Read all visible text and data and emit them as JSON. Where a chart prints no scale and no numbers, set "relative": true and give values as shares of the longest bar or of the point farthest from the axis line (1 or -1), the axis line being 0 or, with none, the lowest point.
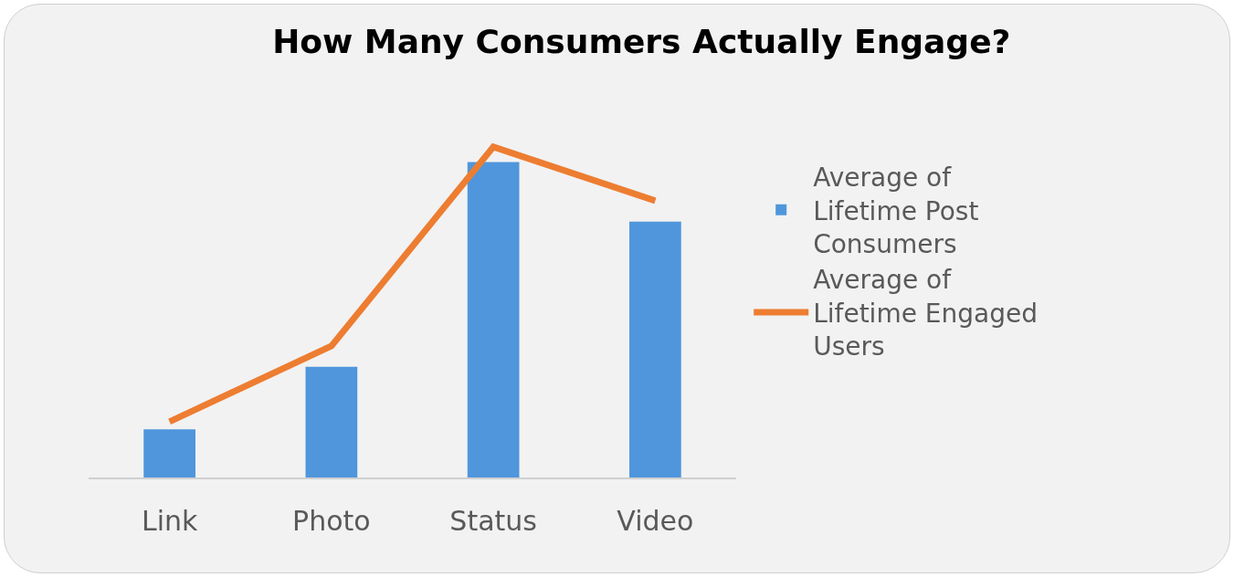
{
  "chart_data": {
    "type": "bar",
    "title": "How Many Consumers Actually Engage?",
    "relative": true,
    "categories": [
      "Link",
      "Photo",
      "Status",
      "Video"
    ],
    "series": [
      {
        "name": "Average of Lifetime Post Consumers",
        "color": "#4f96dc",
        "values": [
          0.146,
          0.335,
          0.954,
          0.774
        ]
      },
      {
        "name": "Average of Lifetime Engaged Users",
        "type": "line",
        "color": "#ed7d31",
        "values": [
          0.169,
          0.398,
          1,
          0.837
        ]
      }
    ],
    "legend": "right",
    "marker": "none",
    "line_style": "solid"
  }
}
